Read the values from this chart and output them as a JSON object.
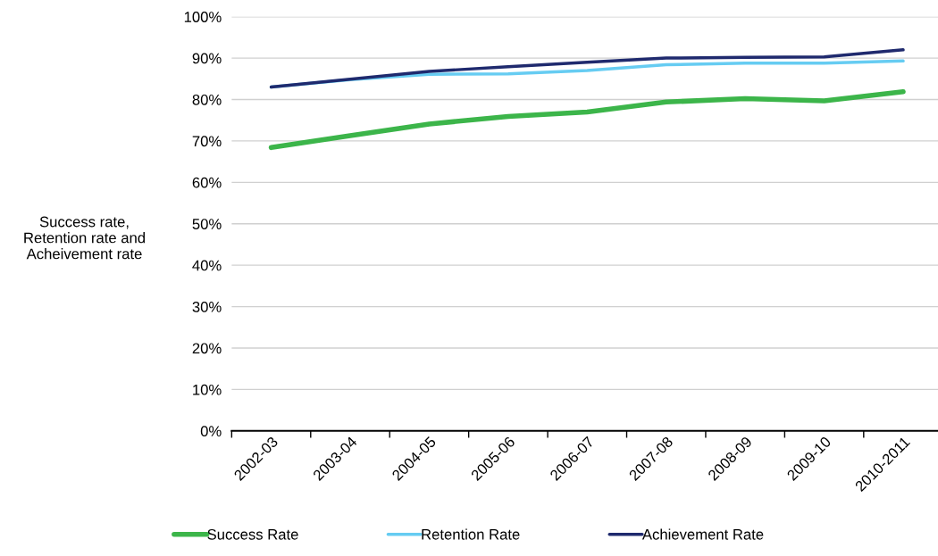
{
  "chart_data": {
    "type": "line",
    "ylabel": "Success rate,\nRetention rate and\nAcheivement rate",
    "categories": [
      "2002-03",
      "2003-04",
      "2004-05",
      "2005-06",
      "2006-07",
      "2007-08",
      "2008-09",
      "2009-10",
      "2010-2011"
    ],
    "series": [
      {
        "name": "Success Rate",
        "color": "#3cb54a",
        "values": [
          68.4,
          71.3,
          74.1,
          75.9,
          77.0,
          79.4,
          80.2,
          79.7,
          81.9
        ]
      },
      {
        "name": "Retention Rate",
        "color": "#66ccf2",
        "values": [
          83.0,
          84.8,
          86.1,
          86.2,
          87.0,
          88.4,
          88.8,
          88.8,
          89.3
        ]
      },
      {
        "name": "Achievement Rate",
        "color": "#1f2a6e",
        "values": [
          83.0,
          84.9,
          86.8,
          87.9,
          89.0,
          90.0,
          90.2,
          90.3,
          92.0
        ]
      }
    ],
    "ylim": [
      0,
      100
    ],
    "yticks": [
      {
        "value": 0,
        "label": "0%"
      },
      {
        "value": 10,
        "label": "10%"
      },
      {
        "value": 20,
        "label": "20%"
      },
      {
        "value": 30,
        "label": "30%"
      },
      {
        "value": 40,
        "label": "40%"
      },
      {
        "value": 50,
        "label": "50%"
      },
      {
        "value": 60,
        "label": "60%"
      },
      {
        "value": 70,
        "label": "70%"
      },
      {
        "value": 80,
        "label": "80%"
      },
      {
        "value": 90,
        "label": "90%"
      },
      {
        "value": 100,
        "label": "100%"
      }
    ],
    "grid": "y",
    "legend": "bottom",
    "marker": "none",
    "line_style": "solid"
  }
}
